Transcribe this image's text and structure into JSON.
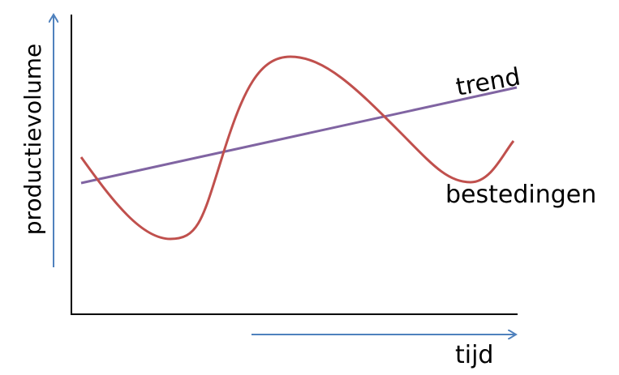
{
  "labels": {
    "y_axis": "productievolume",
    "x_axis": "tijd",
    "trend": "trend",
    "spending": "bestedingen"
  },
  "colors": {
    "axis": "#000000",
    "arrow": "#4f81bd",
    "trend_line": "#8064a2",
    "spending_curve": "#c0504d",
    "text": "#000000"
  }
}
